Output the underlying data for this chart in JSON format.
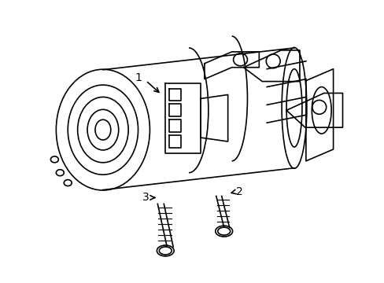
{
  "title": "",
  "background_color": "#ffffff",
  "line_color": "#000000",
  "line_width": 1.2,
  "label_1": "1",
  "label_2": "2",
  "label_3": "3",
  "label_fontsize": 10,
  "fig_width": 4.89,
  "fig_height": 3.6,
  "dpi": 100
}
